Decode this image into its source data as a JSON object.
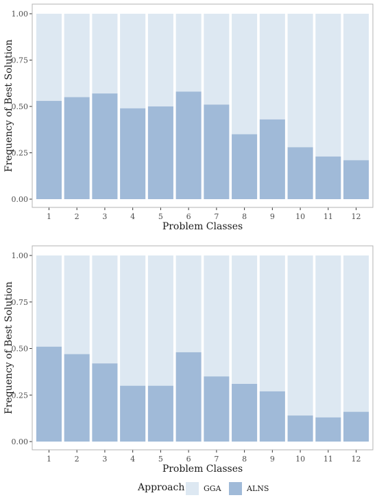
{
  "legend": {
    "title": "Approach",
    "items": [
      {
        "label": "GGA",
        "color": "#dde8f2"
      },
      {
        "label": "ALNS",
        "color": "#a0bad8"
      }
    ]
  },
  "colors": {
    "gga": "#dde8f2",
    "alns": "#a0bad8",
    "panel_border": "#b3b3b3"
  },
  "chart_data": [
    {
      "type": "bar",
      "stacked": true,
      "xlabel": "Problem Classes",
      "ylabel": "Frequency of Best Solution",
      "categories": [
        "1",
        "2",
        "3",
        "4",
        "5",
        "6",
        "7",
        "8",
        "9",
        "10",
        "11",
        "12"
      ],
      "yticks": [
        "0.00",
        "0.25",
        "0.50",
        "0.75",
        "1.00"
      ],
      "ylim": [
        0,
        1
      ],
      "grid": false,
      "series": [
        {
          "name": "ALNS",
          "values": [
            0.53,
            0.55,
            0.57,
            0.49,
            0.5,
            0.58,
            0.51,
            0.35,
            0.43,
            0.28,
            0.23,
            0.21
          ]
        },
        {
          "name": "GGA",
          "values": [
            0.47,
            0.45,
            0.43,
            0.51,
            0.5,
            0.42,
            0.49,
            0.65,
            0.57,
            0.72,
            0.77,
            0.79
          ]
        }
      ]
    },
    {
      "type": "bar",
      "stacked": true,
      "xlabel": "Problem Classes",
      "ylabel": "Frequency of Best Solution",
      "categories": [
        "1",
        "2",
        "3",
        "4",
        "5",
        "6",
        "7",
        "8",
        "9",
        "10",
        "11",
        "12"
      ],
      "yticks": [
        "0.00",
        "0.25",
        "0.50",
        "0.75",
        "1.00"
      ],
      "ylim": [
        0,
        1
      ],
      "grid": false,
      "series": [
        {
          "name": "ALNS",
          "values": [
            0.51,
            0.47,
            0.42,
            0.3,
            0.3,
            0.48,
            0.35,
            0.31,
            0.27,
            0.14,
            0.13,
            0.16
          ]
        },
        {
          "name": "GGA",
          "values": [
            0.49,
            0.53,
            0.58,
            0.7,
            0.7,
            0.52,
            0.65,
            0.69,
            0.73,
            0.86,
            0.87,
            0.84
          ]
        }
      ]
    }
  ]
}
